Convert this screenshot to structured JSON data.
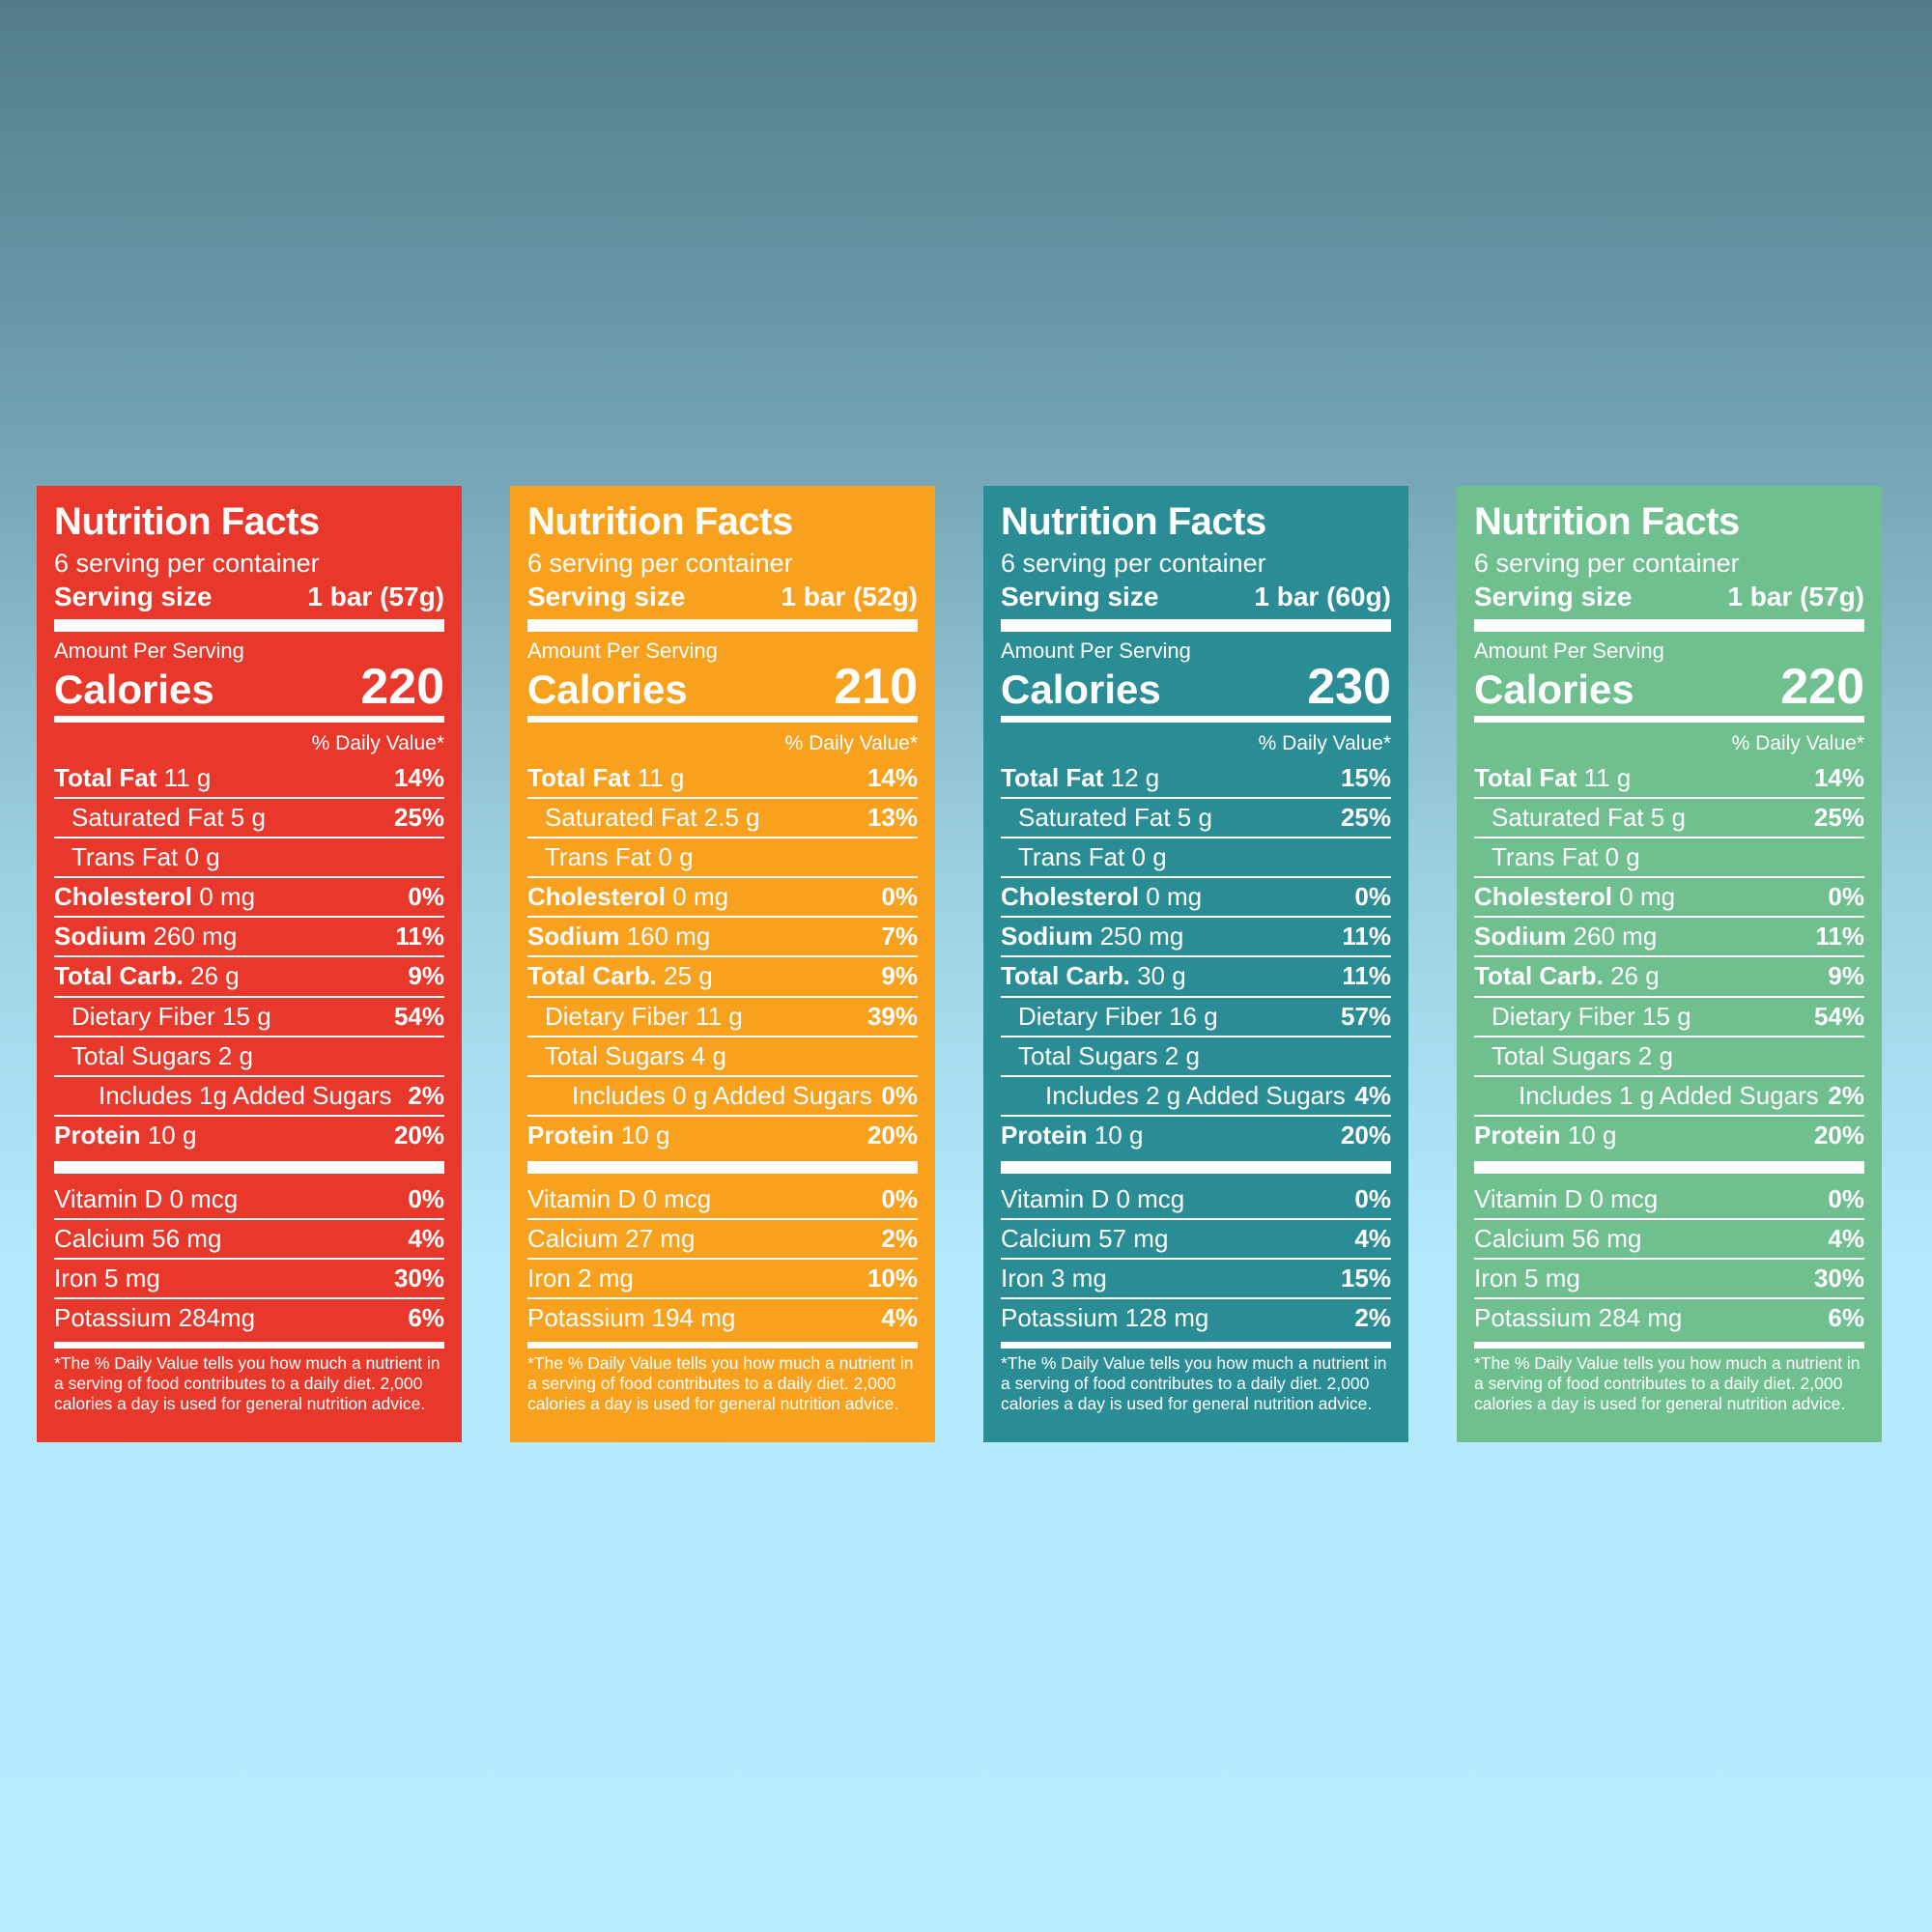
{
  "page": {
    "bg_top": "#527c8b",
    "bg_bottom": "#b6ecfe"
  },
  "labels": [
    {
      "color": "#e8382c",
      "title": "Nutrition Facts",
      "servings": "6 serving per container",
      "serving_size_label": "Serving size",
      "serving_size_value": "1 bar (57g)",
      "amount_per_serving": "Amount Per Serving",
      "calories_label": "Calories",
      "calories_value": "220",
      "daily_value_header": "% Daily Value*",
      "rows": [
        {
          "name": "Total Fat",
          "amount": "11 g",
          "pct": "14%",
          "bold": true
        },
        {
          "name": "Saturated Fat",
          "amount": "5 g",
          "pct": "25%",
          "indent": 1
        },
        {
          "name": "Trans Fat",
          "amount": "0 g",
          "pct": "",
          "indent": 1
        },
        {
          "name": "Cholesterol",
          "amount": "0 mg",
          "pct": "0%",
          "bold": true
        },
        {
          "name": "Sodium",
          "amount": "260 mg",
          "pct": "11%",
          "bold": true
        },
        {
          "name": "Total Carb.",
          "amount": "26 g",
          "pct": "9%",
          "bold": true
        },
        {
          "name": "Dietary Fiber",
          "amount": "15 g",
          "pct": "54%",
          "indent": 1
        },
        {
          "name": "Total Sugars",
          "amount": "2 g",
          "pct": "",
          "indent": 1
        },
        {
          "name": "Includes 1g Added Sugars",
          "amount": "",
          "pct": "2%",
          "indent": 2
        },
        {
          "name": "Protein",
          "amount": "10 g",
          "pct": "20%",
          "bold": true
        }
      ],
      "vitamins": [
        {
          "name": "Vitamin D",
          "amount": "0 mcg",
          "pct": "0%"
        },
        {
          "name": "Calcium",
          "amount": "56 mg",
          "pct": "4%"
        },
        {
          "name": "Iron",
          "amount": "5 mg",
          "pct": "30%"
        },
        {
          "name": "Potassium",
          "amount": "284mg",
          "pct": "6%"
        }
      ],
      "footnote": "*The % Daily Value tells you how much a nutrient in a serving of food contributes to a daily diet. 2,000 calories a day is used for general nutrition advice."
    },
    {
      "color": "#f7a11e",
      "title": "Nutrition Facts",
      "servings": "6 serving per container",
      "serving_size_label": "Serving size",
      "serving_size_value": "1 bar (52g)",
      "amount_per_serving": "Amount Per Serving",
      "calories_label": "Calories",
      "calories_value": "210",
      "daily_value_header": "% Daily Value*",
      "rows": [
        {
          "name": "Total Fat",
          "amount": "11 g",
          "pct": "14%",
          "bold": true
        },
        {
          "name": "Saturated Fat",
          "amount": "2.5 g",
          "pct": "13%",
          "indent": 1
        },
        {
          "name": "Trans Fat",
          "amount": "0 g",
          "pct": "",
          "indent": 1
        },
        {
          "name": "Cholesterol",
          "amount": "0 mg",
          "pct": "0%",
          "bold": true
        },
        {
          "name": "Sodium",
          "amount": "160 mg",
          "pct": "7%",
          "bold": true
        },
        {
          "name": "Total Carb.",
          "amount": "25 g",
          "pct": "9%",
          "bold": true
        },
        {
          "name": "Dietary Fiber",
          "amount": "11 g",
          "pct": "39%",
          "indent": 1
        },
        {
          "name": "Total Sugars",
          "amount": "4 g",
          "pct": "",
          "indent": 1
        },
        {
          "name": "Includes 0 g Added Sugars",
          "amount": "",
          "pct": "0%",
          "indent": 2
        },
        {
          "name": "Protein",
          "amount": "10 g",
          "pct": "20%",
          "bold": true
        }
      ],
      "vitamins": [
        {
          "name": "Vitamin D",
          "amount": "0 mcg",
          "pct": "0%"
        },
        {
          "name": "Calcium",
          "amount": "27 mg",
          "pct": "2%"
        },
        {
          "name": "Iron",
          "amount": "2 mg",
          "pct": "10%"
        },
        {
          "name": "Potassium",
          "amount": "194 mg",
          "pct": "4%"
        }
      ],
      "footnote": "*The % Daily Value tells you how much a nutrient in a serving of food contributes to a daily diet. 2,000 calories a day is used for general nutrition advice."
    },
    {
      "color": "#2a8c94",
      "title": "Nutrition Facts",
      "servings": "6 serving per container",
      "serving_size_label": "Serving size",
      "serving_size_value": "1 bar (60g)",
      "amount_per_serving": "Amount Per Serving",
      "calories_label": "Calories",
      "calories_value": "230",
      "daily_value_header": "% Daily Value*",
      "rows": [
        {
          "name": "Total Fat",
          "amount": "12 g",
          "pct": "15%",
          "bold": true
        },
        {
          "name": "Saturated Fat",
          "amount": "5 g",
          "pct": "25%",
          "indent": 1
        },
        {
          "name": "Trans Fat",
          "amount": "0 g",
          "pct": "",
          "indent": 1
        },
        {
          "name": "Cholesterol",
          "amount": "0 mg",
          "pct": "0%",
          "bold": true
        },
        {
          "name": "Sodium",
          "amount": "250 mg",
          "pct": "11%",
          "bold": true
        },
        {
          "name": "Total Carb.",
          "amount": "30 g",
          "pct": "11%",
          "bold": true
        },
        {
          "name": "Dietary Fiber",
          "amount": "16 g",
          "pct": "57%",
          "indent": 1
        },
        {
          "name": "Total Sugars",
          "amount": "2 g",
          "pct": "",
          "indent": 1
        },
        {
          "name": "Includes 2 g Added Sugars",
          "amount": "",
          "pct": "4%",
          "indent": 2
        },
        {
          "name": "Protein",
          "amount": "10 g",
          "pct": "20%",
          "bold": true
        }
      ],
      "vitamins": [
        {
          "name": "Vitamin D",
          "amount": "0 mcg",
          "pct": "0%"
        },
        {
          "name": "Calcium",
          "amount": "57 mg",
          "pct": "4%"
        },
        {
          "name": "Iron",
          "amount": "3 mg",
          "pct": "15%"
        },
        {
          "name": "Potassium",
          "amount": "128 mg",
          "pct": "2%"
        }
      ],
      "footnote": "*The % Daily Value tells you how much a nutrient in a serving of food contributes to a daily diet. 2,000 calories a day is used for general nutrition advice."
    },
    {
      "color": "#6fbf8f",
      "title": "Nutrition Facts",
      "servings": "6 serving per container",
      "serving_size_label": "Serving size",
      "serving_size_value": "1 bar (57g)",
      "amount_per_serving": "Amount Per Serving",
      "calories_label": "Calories",
      "calories_value": "220",
      "daily_value_header": "% Daily Value*",
      "rows": [
        {
          "name": "Total Fat",
          "amount": "11 g",
          "pct": "14%",
          "bold": true
        },
        {
          "name": "Saturated Fat",
          "amount": "5 g",
          "pct": "25%",
          "indent": 1
        },
        {
          "name": "Trans Fat",
          "amount": "0 g",
          "pct": "",
          "indent": 1
        },
        {
          "name": "Cholesterol",
          "amount": "0 mg",
          "pct": "0%",
          "bold": true
        },
        {
          "name": "Sodium",
          "amount": "260 mg",
          "pct": "11%",
          "bold": true
        },
        {
          "name": "Total Carb.",
          "amount": "26 g",
          "pct": "9%",
          "bold": true
        },
        {
          "name": "Dietary Fiber",
          "amount": "15 g",
          "pct": "54%",
          "indent": 1
        },
        {
          "name": "Total Sugars",
          "amount": "2 g",
          "pct": "",
          "indent": 1
        },
        {
          "name": "Includes 1 g Added Sugars",
          "amount": "",
          "pct": "2%",
          "indent": 2
        },
        {
          "name": "Protein",
          "amount": "10 g",
          "pct": "20%",
          "bold": true
        }
      ],
      "vitamins": [
        {
          "name": "Vitamin D",
          "amount": "0 mcg",
          "pct": "0%"
        },
        {
          "name": "Calcium",
          "amount": "56 mg",
          "pct": "4%"
        },
        {
          "name": "Iron",
          "amount": "5 mg",
          "pct": "30%"
        },
        {
          "name": "Potassium",
          "amount": "284 mg",
          "pct": "6%"
        }
      ],
      "footnote": "*The % Daily Value tells you how much a nutrient in a serving of food contributes to a daily diet. 2,000 calories a day is used for general nutrition advice."
    }
  ]
}
